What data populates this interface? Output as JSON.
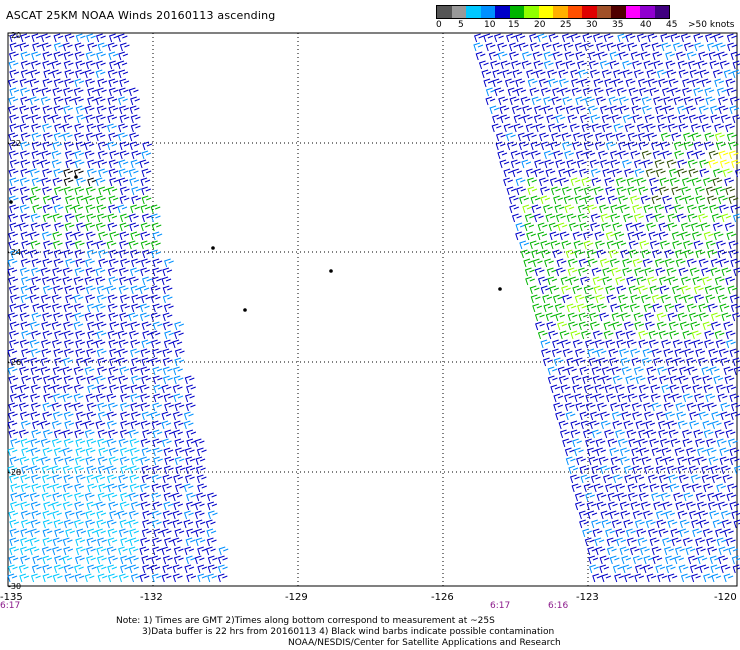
{
  "title": "ASCAT 25KM NOAA Winds 20160113 ascending",
  "legend": {
    "colors": [
      "#555555",
      "#999999",
      "#00c8ff",
      "#0090ff",
      "#0000c8",
      "#00b400",
      "#90ff00",
      "#ffff00",
      "#ffb000",
      "#ff5000",
      "#e00000",
      "#a05028",
      "#500000",
      "#ff00ff",
      "#9000d0",
      "#400080"
    ],
    "labels": [
      "0",
      "5",
      "10",
      "15",
      "20",
      "25",
      "30",
      "35",
      "40",
      "45",
      ">50 knots"
    ]
  },
  "axes": {
    "x_ticks": [
      "-135",
      "-132",
      "-129",
      "-126",
      "-123",
      "-120"
    ],
    "y_ticks": [
      "-20",
      "-22",
      "-24",
      "-26",
      "-28",
      "-30"
    ]
  },
  "swath_times": [
    "6:17",
    "6:17",
    "6:16"
  ],
  "notes": [
    "Note: 1) Times are GMT 2)Times along bottom correspond to measurement at ~25S",
    "3)Data buffer is 22 hrs from 20160113 4) Black wind barbs indicate possible contamination",
    "NOAA/NESDIS/Center for Satellite Applications and Research"
  ]
}
